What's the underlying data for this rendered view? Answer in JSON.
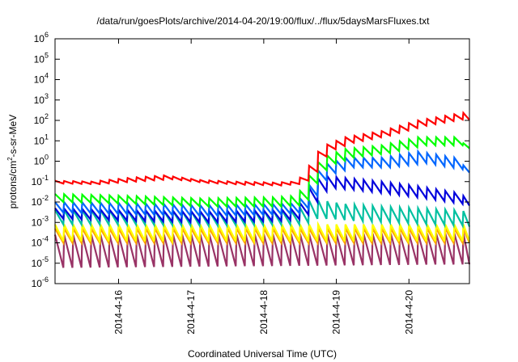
{
  "chart_data": {
    "type": "line",
    "title": "/data/run/goesPlots/archive/2014-04-20/19:00/flux/../flux/5daysMarsFluxes.txt",
    "xlabel": "Coordinated Universal Time (UTC)",
    "ylabel": {
      "pre": "protons/cm",
      "sup": "2",
      "post": "-s-sr-MeV"
    },
    "y_scale": "log",
    "ylim": [
      1e-06,
      1000000.0
    ],
    "xlim": [
      "2014-04-15 03:00",
      "2014-04-20 20:00"
    ],
    "grid": false,
    "legend": "none",
    "y_ticks": [
      {
        "exp": -6,
        "base": "10",
        "sup": "-6"
      },
      {
        "exp": -5,
        "base": "10",
        "sup": "-5"
      },
      {
        "exp": -4,
        "base": "10",
        "sup": "-4"
      },
      {
        "exp": -3,
        "base": "10",
        "sup": "-3"
      },
      {
        "exp": -2,
        "base": "10",
        "sup": "-2"
      },
      {
        "exp": -1,
        "base": "10",
        "sup": "-1"
      },
      {
        "exp": 0,
        "base": "10",
        "sup": "0"
      },
      {
        "exp": 1,
        "base": "10",
        "sup": "1"
      },
      {
        "exp": 2,
        "base": "10",
        "sup": "2"
      },
      {
        "exp": 3,
        "base": "10",
        "sup": "3"
      },
      {
        "exp": 4,
        "base": "10",
        "sup": "4"
      },
      {
        "exp": 5,
        "base": "10",
        "sup": "5"
      },
      {
        "exp": 6,
        "base": "10",
        "sup": "6"
      }
    ],
    "x_ticks": [
      {
        "date": "2014-04-16 00:00",
        "label": "2014-4-16"
      },
      {
        "date": "2014-04-17 00:00",
        "label": "2014-4-17"
      },
      {
        "date": "2014-04-18 00:00",
        "label": "2014-4-18"
      },
      {
        "date": "2014-04-19 00:00",
        "label": "2014-4-19"
      },
      {
        "date": "2014-04-20 00:00",
        "label": "2014-4-20"
      }
    ],
    "sawtooth_period_hours": 3,
    "series": [
      {
        "color": "#ff0000",
        "high": [
          [
            0,
            0.11
          ],
          [
            12,
            0.1
          ],
          [
            24,
            0.15
          ],
          [
            36,
            0.2
          ],
          [
            48,
            0.12
          ],
          [
            60,
            0.1
          ],
          [
            72,
            0.09
          ],
          [
            80,
            0.1
          ],
          [
            84,
            0.6
          ],
          [
            88,
            5
          ],
          [
            96,
            15
          ],
          [
            108,
            30
          ],
          [
            120,
            100
          ],
          [
            132,
            200
          ],
          [
            140,
            300
          ]
        ],
        "low": [
          [
            0,
            0.08
          ],
          [
            12,
            0.075
          ],
          [
            24,
            0.1
          ],
          [
            36,
            0.13
          ],
          [
            48,
            0.085
          ],
          [
            60,
            0.07
          ],
          [
            72,
            0.065
          ],
          [
            80,
            0.08
          ],
          [
            84,
            0.3
          ],
          [
            88,
            3
          ],
          [
            96,
            8
          ],
          [
            108,
            18
          ],
          [
            120,
            55
          ],
          [
            132,
            110
          ],
          [
            140,
            100
          ]
        ]
      },
      {
        "color": "#00ff00",
        "high": [
          [
            0,
            0.025
          ],
          [
            24,
            0.02
          ],
          [
            48,
            0.015
          ],
          [
            72,
            0.017
          ],
          [
            80,
            0.02
          ],
          [
            84,
            0.2
          ],
          [
            88,
            1.5
          ],
          [
            96,
            4
          ],
          [
            108,
            6
          ],
          [
            120,
            15
          ],
          [
            132,
            15
          ],
          [
            140,
            2.5
          ]
        ],
        "low": [
          [
            0,
            0.01
          ],
          [
            24,
            0.008
          ],
          [
            48,
            0.006
          ],
          [
            72,
            0.006
          ],
          [
            80,
            0.007
          ],
          [
            84,
            0.08
          ],
          [
            88,
            0.6
          ],
          [
            96,
            1.5
          ],
          [
            108,
            2.5
          ],
          [
            120,
            6
          ],
          [
            132,
            6
          ],
          [
            140,
            2.5
          ]
        ]
      },
      {
        "color": "#0066ff",
        "high": [
          [
            0,
            0.01
          ],
          [
            24,
            0.009
          ],
          [
            48,
            0.007
          ],
          [
            72,
            0.008
          ],
          [
            80,
            0.009
          ],
          [
            84,
            0.07
          ],
          [
            88,
            0.6
          ],
          [
            96,
            1.5
          ],
          [
            108,
            1.5
          ],
          [
            120,
            3
          ],
          [
            132,
            1.5
          ],
          [
            140,
            0.15
          ]
        ],
        "low": [
          [
            0,
            0.003
          ],
          [
            24,
            0.0025
          ],
          [
            48,
            0.002
          ],
          [
            72,
            0.0025
          ],
          [
            80,
            0.003
          ],
          [
            84,
            0.02
          ],
          [
            88,
            0.2
          ],
          [
            96,
            0.5
          ],
          [
            108,
            0.5
          ],
          [
            120,
            0.8
          ],
          [
            132,
            0.4
          ],
          [
            140,
            0.15
          ]
        ]
      },
      {
        "color": "#0000dd",
        "high": [
          [
            0,
            0.005
          ],
          [
            24,
            0.004
          ],
          [
            48,
            0.0035
          ],
          [
            72,
            0.004
          ],
          [
            80,
            0.005
          ],
          [
            84,
            0.05
          ],
          [
            88,
            0.2
          ],
          [
            96,
            0.15
          ],
          [
            108,
            0.1
          ],
          [
            120,
            0.06
          ],
          [
            132,
            0.03
          ],
          [
            140,
            0.01
          ]
        ],
        "low": [
          [
            0,
            0.0015
          ],
          [
            24,
            0.0012
          ],
          [
            48,
            0.001
          ],
          [
            72,
            0.0012
          ],
          [
            80,
            0.0015
          ],
          [
            84,
            0.01
          ],
          [
            88,
            0.05
          ],
          [
            96,
            0.04
          ],
          [
            108,
            0.025
          ],
          [
            120,
            0.015
          ],
          [
            132,
            0.008
          ],
          [
            140,
            0.005
          ]
        ]
      },
      {
        "color": "#00c0a0",
        "high": [
          [
            0,
            0.004
          ],
          [
            24,
            0.004
          ],
          [
            48,
            0.0035
          ],
          [
            72,
            0.004
          ],
          [
            80,
            0.004
          ],
          [
            84,
            0.012
          ],
          [
            88,
            0.012
          ],
          [
            96,
            0.008
          ],
          [
            108,
            0.006
          ],
          [
            120,
            0.005
          ],
          [
            132,
            0.004
          ],
          [
            140,
            0.003
          ]
        ],
        "low": [
          [
            0,
            0.0008
          ],
          [
            24,
            0.0008
          ],
          [
            48,
            0.0007
          ],
          [
            72,
            0.0008
          ],
          [
            80,
            0.0008
          ],
          [
            84,
            0.0015
          ],
          [
            88,
            0.0015
          ],
          [
            96,
            0.0012
          ],
          [
            108,
            0.001
          ],
          [
            120,
            0.0008
          ],
          [
            132,
            0.0007
          ],
          [
            140,
            0.0005
          ]
        ]
      },
      {
        "color": "#ffff00",
        "high": [
          [
            0,
            0.0008
          ],
          [
            140,
            0.0008
          ]
        ],
        "low": [
          [
            0,
            0.00012
          ],
          [
            140,
            0.00012
          ]
        ]
      },
      {
        "color": "#ffa500",
        "high": [
          [
            0,
            0.0005
          ],
          [
            140,
            0.0005
          ]
        ],
        "low": [
          [
            0,
            0.0001
          ],
          [
            140,
            0.0001
          ]
        ]
      },
      {
        "color": "#993366",
        "high": [
          [
            0,
            0.00025
          ],
          [
            140,
            0.0003
          ]
        ],
        "low": [
          [
            0,
            6e-06
          ],
          [
            140,
            9e-06
          ]
        ]
      }
    ]
  }
}
